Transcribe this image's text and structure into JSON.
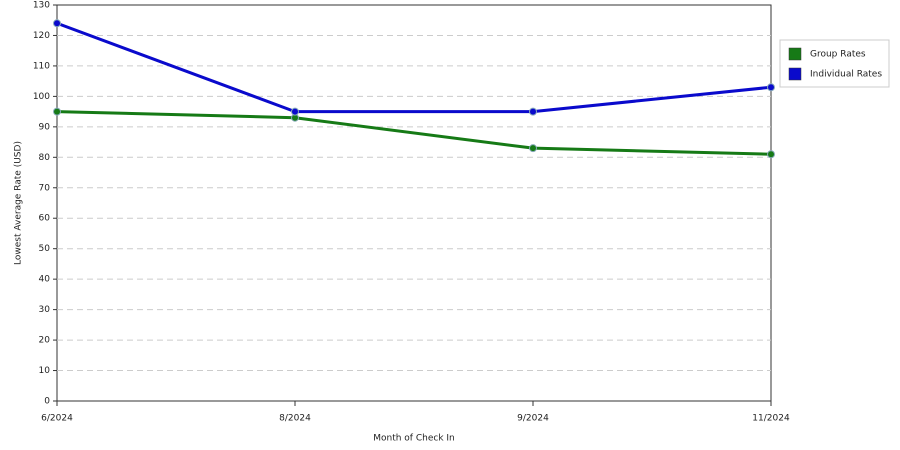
{
  "chart_data": {
    "type": "line",
    "x_label": "Month of Check In",
    "y_label": "Lowest Average Rate (USD)",
    "categories": [
      "6/2024",
      "8/2024",
      "9/2024",
      "11/2024"
    ],
    "series": [
      {
        "name": "Group Rates",
        "color": "#167a16",
        "values": [
          95,
          93,
          83,
          81
        ]
      },
      {
        "name": "Individual Rates",
        "color": "#0a0acc",
        "values": [
          124,
          95,
          95,
          103
        ]
      }
    ],
    "ylim": [
      0,
      130
    ],
    "yticks": [
      0,
      10,
      20,
      30,
      40,
      50,
      60,
      70,
      80,
      90,
      100,
      110,
      120,
      130
    ],
    "grid": true,
    "legend": "right"
  }
}
